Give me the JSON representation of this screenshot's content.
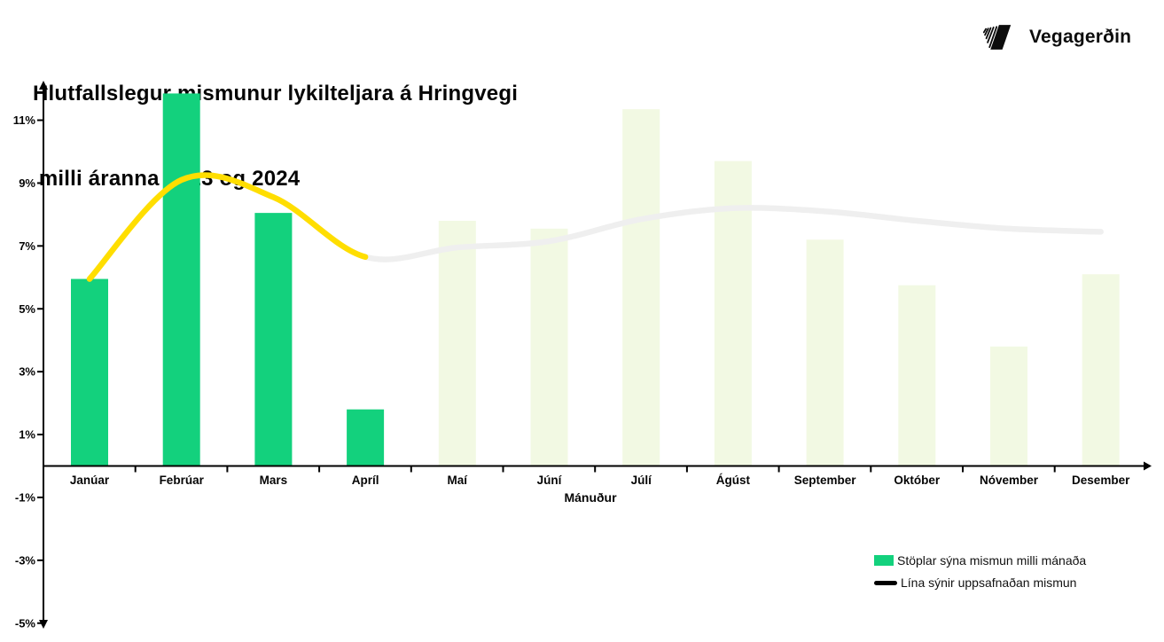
{
  "header": {
    "title_line1": "Hlutfallslegur mismunur lykilteljara á Hringvegi",
    "title_line2": " milli áranna 2023 og 2024",
    "logo_text": "Vegagerðin"
  },
  "legend": {
    "bars_label": "Stöplar sýna mismun milli mánaða",
    "line_label": "Lína sýnir uppsafnaðan mismun"
  },
  "chart_data": {
    "type": "bar",
    "title": "Hlutfallslegur mismunur lykilteljara á Hringvegi milli áranna 2023 og 2024",
    "xlabel": "Mánuður",
    "ylabel": "",
    "categories": [
      "Janúar",
      "Febrúar",
      "Mars",
      "Apríl",
      "Maí",
      "Júní",
      "Júlí",
      "Ágúst",
      "September",
      "Október",
      "Nóvember",
      "Desember"
    ],
    "series": [
      {
        "name": "Stöplar sýna mismun milli mánaða",
        "type": "bar",
        "values": [
          5.95,
          11.85,
          8.05,
          1.8,
          7.8,
          7.55,
          11.35,
          9.7,
          7.2,
          5.75,
          3.8,
          6.1
        ],
        "emphasized": [
          true,
          true,
          true,
          true,
          false,
          false,
          false,
          false,
          false,
          false,
          false,
          false
        ]
      },
      {
        "name": "Lína sýnir uppsafnaðan mismun",
        "type": "line",
        "values": [
          5.95,
          9.1,
          8.55,
          6.65,
          6.95,
          7.15,
          7.85,
          8.2,
          8.1,
          7.8,
          7.55,
          7.45
        ],
        "emphasized_through_month": 4
      }
    ],
    "yticks": [
      11,
      9,
      7,
      5,
      3,
      1,
      -1,
      -3,
      -5
    ],
    "ytick_suffix": "%",
    "ylim": [
      -5,
      12.2
    ],
    "grid": false,
    "legend_position": "bottom-right",
    "colors": {
      "bar_active": "#13d17d",
      "bar_faded": "#f2f9e3",
      "line_active": "#ffde00",
      "line_faded": "#efefef",
      "axis": "#000000",
      "text": "#050505"
    }
  }
}
